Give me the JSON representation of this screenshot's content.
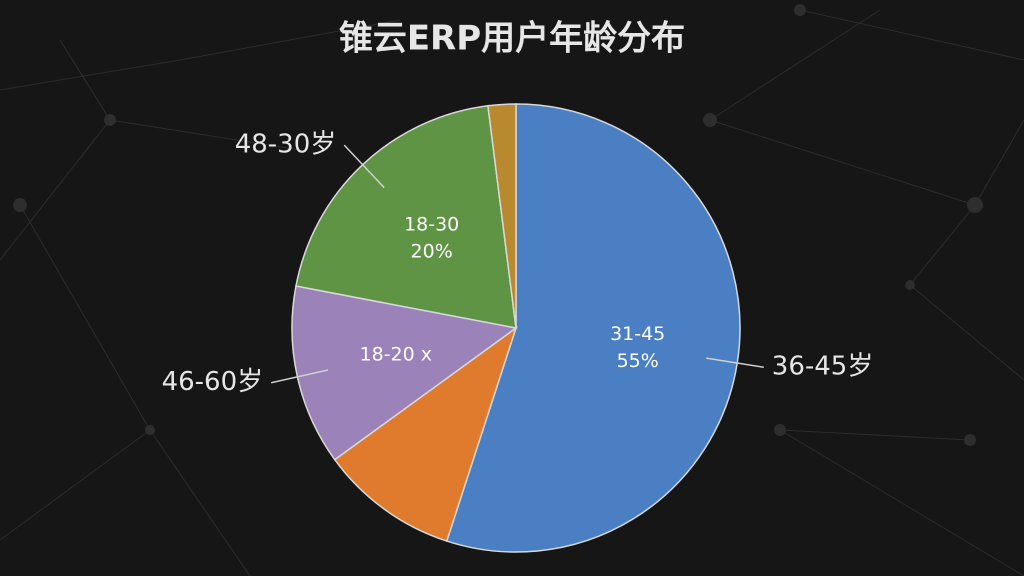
{
  "chart_data": {
    "type": "pie",
    "title": "锥云ERP用户年龄分布",
    "categories": [
      "31-45",
      null,
      "18-20 x",
      "18-30",
      null
    ],
    "values": [
      55,
      10,
      13,
      20,
      2
    ],
    "value_labels": [
      "55%",
      null,
      null,
      "20%",
      null
    ],
    "outer_labels": [
      "36-45岁",
      null,
      "46-60岁",
      "48-30岁",
      null
    ],
    "colors": [
      "#4a7fc4",
      "#e07b2e",
      "#9b82b8",
      "#5f9444",
      "#b8892e"
    ],
    "start_angle": 0,
    "direction": "clockwise"
  }
}
